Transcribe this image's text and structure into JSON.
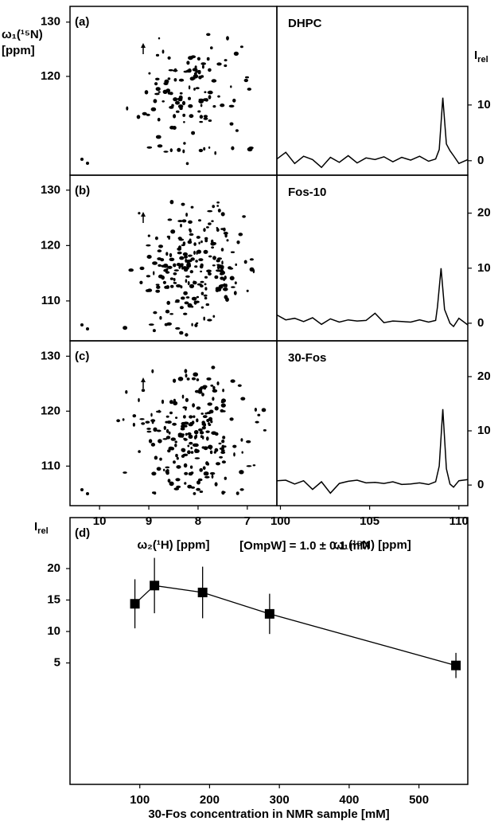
{
  "chart_data": [
    {
      "type": "contour",
      "panel_label": "(a)",
      "xlim": [
        10.6,
        6.4
      ],
      "ylim": [
        101.8,
        132.9
      ],
      "yticks": [
        120,
        130
      ],
      "ylabel": [
        "ω₁(¹⁵N)",
        "[ppm]"
      ]
    },
    {
      "type": "contour",
      "panel_label": "(b)",
      "xlim": [
        10.6,
        6.4
      ],
      "ylim": [
        102.8,
        132.7
      ],
      "yticks": [
        110,
        120,
        130
      ]
    },
    {
      "type": "contour",
      "panel_label": "(c)",
      "xlim": [
        10.6,
        6.4
      ],
      "ylim": [
        102.8,
        132.8
      ],
      "yticks": [
        110,
        120,
        130
      ],
      "xticks": [
        10,
        9,
        8,
        7
      ],
      "xlabel": "ω₂(¹H) [ppm]"
    },
    {
      "type": "line",
      "title": "DHPC",
      "color": "#000000",
      "xlim": [
        99.8,
        110.5
      ],
      "ylim": [
        -2.6,
        27.7
      ],
      "yticks": [
        0,
        10
      ],
      "ylabel": {
        "main": "I",
        "sub": "rel"
      },
      "x": [
        99.8,
        100.3,
        100.8,
        101.3,
        101.8,
        102.3,
        102.8,
        103.3,
        103.8,
        104.3,
        104.8,
        105.3,
        105.8,
        106.3,
        106.8,
        107.3,
        107.8,
        108.3,
        108.7,
        108.9,
        109.1,
        109.3,
        109.5,
        109.7,
        110.0,
        110.5
      ],
      "values": [
        0.3,
        1.5,
        -0.5,
        0.8,
        0.2,
        -1.2,
        0.6,
        -0.3,
        0.9,
        -0.4,
        0.5,
        0.2,
        0.7,
        -0.2,
        0.6,
        0.1,
        0.8,
        -0.1,
        0.3,
        2.0,
        11.3,
        3.0,
        1.8,
        0.9,
        -0.5,
        0.2
      ]
    },
    {
      "type": "line",
      "title": "Fos-10",
      "color": "#000000",
      "xlim": [
        99.8,
        110.5
      ],
      "ylim": [
        -3.2,
        26.9
      ],
      "yticks": [
        0,
        10,
        20
      ],
      "x": [
        99.8,
        100.3,
        100.8,
        101.3,
        101.8,
        102.3,
        102.8,
        103.3,
        103.8,
        104.3,
        104.8,
        105.3,
        105.8,
        106.3,
        106.8,
        107.3,
        107.8,
        108.3,
        108.7,
        108.8,
        109.0,
        109.2,
        109.5,
        109.7,
        110.0,
        110.5
      ],
      "values": [
        1.5,
        0.6,
        0.9,
        0.3,
        1.0,
        -0.2,
        0.8,
        0.2,
        0.6,
        0.4,
        0.5,
        1.8,
        0.1,
        0.4,
        0.3,
        0.2,
        0.6,
        0.2,
        0.5,
        3.0,
        10,
        2.5,
        0.0,
        -0.6,
        0.9,
        -0.3
      ]
    },
    {
      "type": "line",
      "title": "30-Fos",
      "color": "#000000",
      "xlim": [
        99.8,
        110.5
      ],
      "ylim": [
        -3.8,
        26.6
      ],
      "yticks": [
        0,
        10,
        20
      ],
      "xticks": [
        100,
        105,
        110
      ],
      "xlabel": "ω₁(¹⁵N) [ppm]",
      "x": [
        99.8,
        100.3,
        100.8,
        101.3,
        101.8,
        102.3,
        102.8,
        103.3,
        103.8,
        104.3,
        104.8,
        105.3,
        105.8,
        106.3,
        106.8,
        107.3,
        107.8,
        108.3,
        108.7,
        108.9,
        109.1,
        109.3,
        109.5,
        109.7,
        110.0,
        110.5
      ],
      "values": [
        0.8,
        0.9,
        0.2,
        0.8,
        -0.8,
        0.6,
        -1.5,
        0.3,
        0.7,
        0.9,
        0.4,
        0.5,
        0.3,
        0.6,
        0.1,
        0.2,
        0.4,
        0.1,
        0.6,
        3.5,
        14,
        3.0,
        0.2,
        -0.4,
        0.8,
        1.0
      ]
    },
    {
      "type": "scatter",
      "panel_label": "(d)",
      "annotation": "[OmpW] = 1.0 ± 0.1 mM",
      "color": "#000000",
      "x": [
        93,
        121,
        190,
        286,
        553
      ],
      "values": [
        14.4,
        17.3,
        16.2,
        12.8,
        4.6
      ],
      "errors": [
        3.9,
        4.4,
        4.1,
        3.2,
        2.0
      ],
      "xlim": [
        0,
        570
      ],
      "ylim": [
        -14.3,
        28.1
      ],
      "xticks": [
        100,
        200,
        300,
        400,
        500
      ],
      "yticks": [
        5,
        10,
        15,
        20
      ],
      "xlabel": "30-Fos concentration in NMR sample [mM]",
      "ylabel": {
        "main": "I",
        "sub": "rel"
      }
    }
  ]
}
